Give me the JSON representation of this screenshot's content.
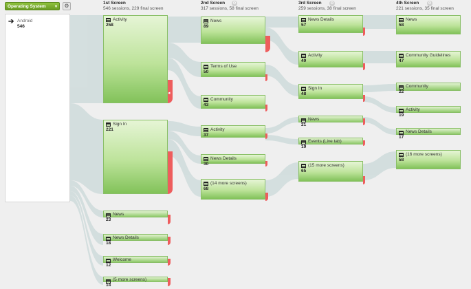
{
  "toolbar": {
    "dimension_label": "Operating System",
    "dimension_caret_icon": "chevron-down-icon",
    "settings_icon": "gear-icon"
  },
  "source": {
    "name": "Android",
    "sessions": "546",
    "icon": "arrow-right-icon"
  },
  "columns": [
    {
      "title": "1st Screen",
      "summary": "546 sessions, 229 final screen"
    },
    {
      "title": "2nd Screen",
      "summary": "317 sessions, 58 final screen"
    },
    {
      "title": "3rd Screen",
      "summary": "259 sessions, 38 final screen"
    },
    {
      "title": "4th Screen",
      "summary": "221 sessions, 35 final screen"
    }
  ],
  "nodes": {
    "c1": [
      {
        "name": "Activity",
        "count": "258"
      },
      {
        "name": "Sign In",
        "count": "221"
      },
      {
        "name": "News",
        "count": "23"
      },
      {
        "name": "News Details",
        "count": "18"
      },
      {
        "name": "Welcome",
        "count": "12"
      },
      {
        "name": "(5 more screens)",
        "count": "14"
      }
    ],
    "c2": [
      {
        "name": "News",
        "count": "89"
      },
      {
        "name": "Terms of Use",
        "count": "50"
      },
      {
        "name": "Community",
        "count": "43"
      },
      {
        "name": "Activity",
        "count": "37"
      },
      {
        "name": "News Details",
        "count": "30"
      },
      {
        "name": "(14 more screens)",
        "count": "68"
      }
    ],
    "c3": [
      {
        "name": "News Details",
        "count": "57"
      },
      {
        "name": "Activity",
        "count": "49"
      },
      {
        "name": "Sign In",
        "count": "48"
      },
      {
        "name": "News",
        "count": "21"
      },
      {
        "name": "Events (Live tab)",
        "count": "19"
      },
      {
        "name": "(15 more screens)",
        "count": "65"
      }
    ],
    "c4": [
      {
        "name": "News",
        "count": "58"
      },
      {
        "name": "Community Guidelines",
        "count": "47"
      },
      {
        "name": "Community",
        "count": "22"
      },
      {
        "name": "Activity",
        "count": "19"
      },
      {
        "name": "News Details",
        "count": "17"
      },
      {
        "name": "(16 more screens)",
        "count": "58"
      }
    ]
  },
  "colors": {
    "node_fill": "#a5d67f",
    "drop_off": "#ee5d5d",
    "flow": "#cfdcdc"
  }
}
